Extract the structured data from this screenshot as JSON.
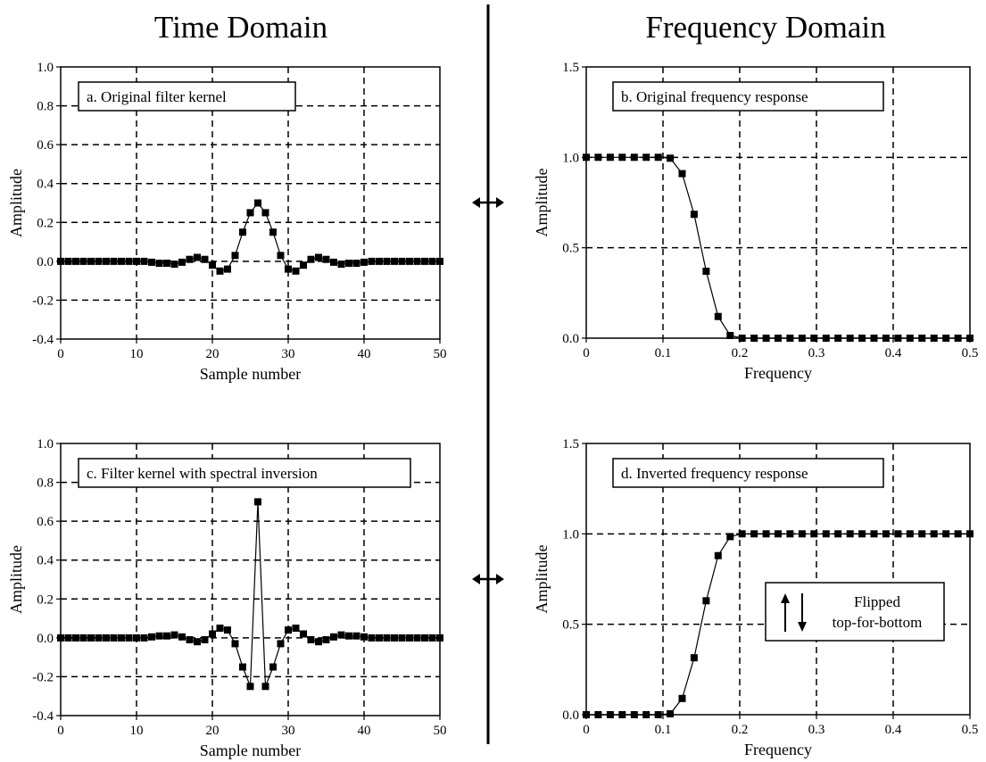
{
  "headings": {
    "left": "Time Domain",
    "right": "Frequency Domain"
  },
  "colors": {
    "ink": "#000000",
    "background": "#ffffff"
  },
  "chart_data": [
    {
      "id": "a",
      "type": "scatter",
      "style": "line-with-square-markers",
      "label": "a.  Original filter kernel",
      "xlabel": "Sample number",
      "ylabel": "Amplitude",
      "xlim": [
        0,
        50
      ],
      "ylim": [
        -0.4,
        1.0
      ],
      "xticks": [
        0,
        10,
        20,
        30,
        40,
        50
      ],
      "xticklabels": [
        "0",
        "10",
        "20",
        "30",
        "40",
        "50"
      ],
      "yticks": [
        -0.4,
        -0.2,
        0.0,
        0.2,
        0.4,
        0.6,
        0.8,
        1.0
      ],
      "yticklabels": [
        "-0.4",
        "-0.2",
        "0.0",
        "0.2",
        "0.4",
        "0.6",
        "0.8",
        "1.0"
      ],
      "grid": true,
      "grid_style": "dashed",
      "x": [
        0,
        1,
        2,
        3,
        4,
        5,
        6,
        7,
        8,
        9,
        10,
        11,
        12,
        13,
        14,
        15,
        16,
        17,
        18,
        19,
        20,
        21,
        22,
        23,
        24,
        25,
        26,
        27,
        28,
        29,
        30,
        31,
        32,
        33,
        34,
        35,
        36,
        37,
        38,
        39,
        40,
        41,
        42,
        43,
        44,
        45,
        46,
        47,
        48,
        49,
        50
      ],
      "y": [
        0,
        0,
        0,
        0,
        0,
        0,
        0,
        0,
        0,
        0,
        0,
        0,
        -0.005,
        -0.01,
        -0.01,
        -0.015,
        -0.005,
        0.01,
        0.02,
        0.01,
        -0.02,
        -0.05,
        -0.04,
        0.03,
        0.15,
        0.25,
        0.3,
        0.25,
        0.15,
        0.03,
        -0.04,
        -0.05,
        -0.02,
        0.01,
        0.02,
        0.01,
        -0.005,
        -0.015,
        -0.01,
        -0.01,
        -0.005,
        0,
        0,
        0,
        0,
        0,
        0,
        0,
        0,
        0,
        0
      ]
    },
    {
      "id": "b",
      "type": "scatter",
      "style": "line-with-square-markers",
      "label": "b.  Original frequency response",
      "xlabel": "Frequency",
      "ylabel": "Amplitude",
      "xlim": [
        0,
        0.5
      ],
      "ylim": [
        0,
        1.5
      ],
      "xticks": [
        0,
        0.1,
        0.2,
        0.3,
        0.4,
        0.5
      ],
      "xticklabels": [
        "0",
        "0.1",
        "0.2",
        "0.3",
        "0.4",
        "0.5"
      ],
      "yticks": [
        0,
        0.5,
        1.0,
        1.5
      ],
      "yticklabels": [
        "0.0",
        "0.5",
        "1.0",
        "1.5"
      ],
      "grid": true,
      "grid_style": "dashed",
      "x": [
        0,
        0.0156,
        0.0313,
        0.0469,
        0.0625,
        0.0781,
        0.0938,
        0.1094,
        0.125,
        0.1406,
        0.1563,
        0.1719,
        0.1875,
        0.2031,
        0.2188,
        0.2344,
        0.25,
        0.2656,
        0.2813,
        0.2969,
        0.3125,
        0.3281,
        0.3438,
        0.3594,
        0.375,
        0.3906,
        0.4063,
        0.4219,
        0.4375,
        0.4531,
        0.4688,
        0.4844,
        0.5
      ],
      "y": [
        1,
        1,
        1,
        1,
        1,
        1,
        1,
        0.995,
        0.91,
        0.685,
        0.37,
        0.12,
        0.015,
        0,
        0,
        0,
        0,
        0,
        0,
        0,
        0,
        0,
        0,
        0,
        0,
        0,
        0,
        0,
        0,
        0,
        0,
        0,
        0
      ]
    },
    {
      "id": "c",
      "type": "scatter",
      "style": "line-with-square-markers",
      "label": "c.  Filter kernel with spectral inversion",
      "xlabel": "Sample number",
      "ylabel": "Amplitude",
      "xlim": [
        0,
        50
      ],
      "ylim": [
        -0.4,
        1.0
      ],
      "xticks": [
        0,
        10,
        20,
        30,
        40,
        50
      ],
      "xticklabels": [
        "0",
        "10",
        "20",
        "30",
        "40",
        "50"
      ],
      "yticks": [
        -0.4,
        -0.2,
        0.0,
        0.2,
        0.4,
        0.6,
        0.8,
        1.0
      ],
      "yticklabels": [
        "-0.4",
        "-0.2",
        "0.0",
        "0.2",
        "0.4",
        "0.6",
        "0.8",
        "1.0"
      ],
      "grid": true,
      "grid_style": "dashed",
      "x": [
        0,
        1,
        2,
        3,
        4,
        5,
        6,
        7,
        8,
        9,
        10,
        11,
        12,
        13,
        14,
        15,
        16,
        17,
        18,
        19,
        20,
        21,
        22,
        23,
        24,
        25,
        26,
        27,
        28,
        29,
        30,
        31,
        32,
        33,
        34,
        35,
        36,
        37,
        38,
        39,
        40,
        41,
        42,
        43,
        44,
        45,
        46,
        47,
        48,
        49,
        50
      ],
      "y": [
        0,
        0,
        0,
        0,
        0,
        0,
        0,
        0,
        0,
        0,
        0,
        0,
        0.005,
        0.01,
        0.01,
        0.015,
        0.005,
        -0.01,
        -0.02,
        -0.01,
        0.02,
        0.05,
        0.04,
        -0.03,
        -0.15,
        -0.25,
        0.7,
        -0.25,
        -0.15,
        -0.03,
        0.04,
        0.05,
        0.02,
        -0.01,
        -0.02,
        -0.01,
        0.005,
        0.015,
        0.01,
        0.01,
        0.005,
        0,
        0,
        0,
        0,
        0,
        0,
        0,
        0,
        0,
        0
      ]
    },
    {
      "id": "d",
      "type": "scatter",
      "style": "line-with-square-markers",
      "label": "d.  Inverted frequency response",
      "xlabel": "Frequency",
      "ylabel": "Amplitude",
      "xlim": [
        0,
        0.5
      ],
      "ylim": [
        0,
        1.5
      ],
      "xticks": [
        0,
        0.1,
        0.2,
        0.3,
        0.4,
        0.5
      ],
      "xticklabels": [
        "0",
        "0.1",
        "0.2",
        "0.3",
        "0.4",
        "0.5"
      ],
      "yticks": [
        0,
        0.5,
        1.0,
        1.5
      ],
      "yticklabels": [
        "0.0",
        "0.5",
        "1.0",
        "1.5"
      ],
      "grid": true,
      "grid_style": "dashed",
      "x": [
        0,
        0.0156,
        0.0313,
        0.0469,
        0.0625,
        0.0781,
        0.0938,
        0.1094,
        0.125,
        0.1406,
        0.1563,
        0.1719,
        0.1875,
        0.2031,
        0.2188,
        0.2344,
        0.25,
        0.2656,
        0.2813,
        0.2969,
        0.3125,
        0.3281,
        0.3438,
        0.3594,
        0.375,
        0.3906,
        0.4063,
        0.4219,
        0.4375,
        0.4531,
        0.4688,
        0.4844,
        0.5
      ],
      "y": [
        0,
        0,
        0,
        0,
        0,
        0,
        0,
        0.005,
        0.09,
        0.315,
        0.63,
        0.88,
        0.985,
        1,
        1,
        1,
        1,
        1,
        1,
        1,
        1,
        1,
        1,
        1,
        1,
        1,
        1,
        1,
        1,
        1,
        1,
        1,
        1
      ],
      "note": {
        "line1": "Flipped",
        "line2": "top-for-bottom",
        "icon": "up-down-arrows-icon"
      }
    }
  ]
}
